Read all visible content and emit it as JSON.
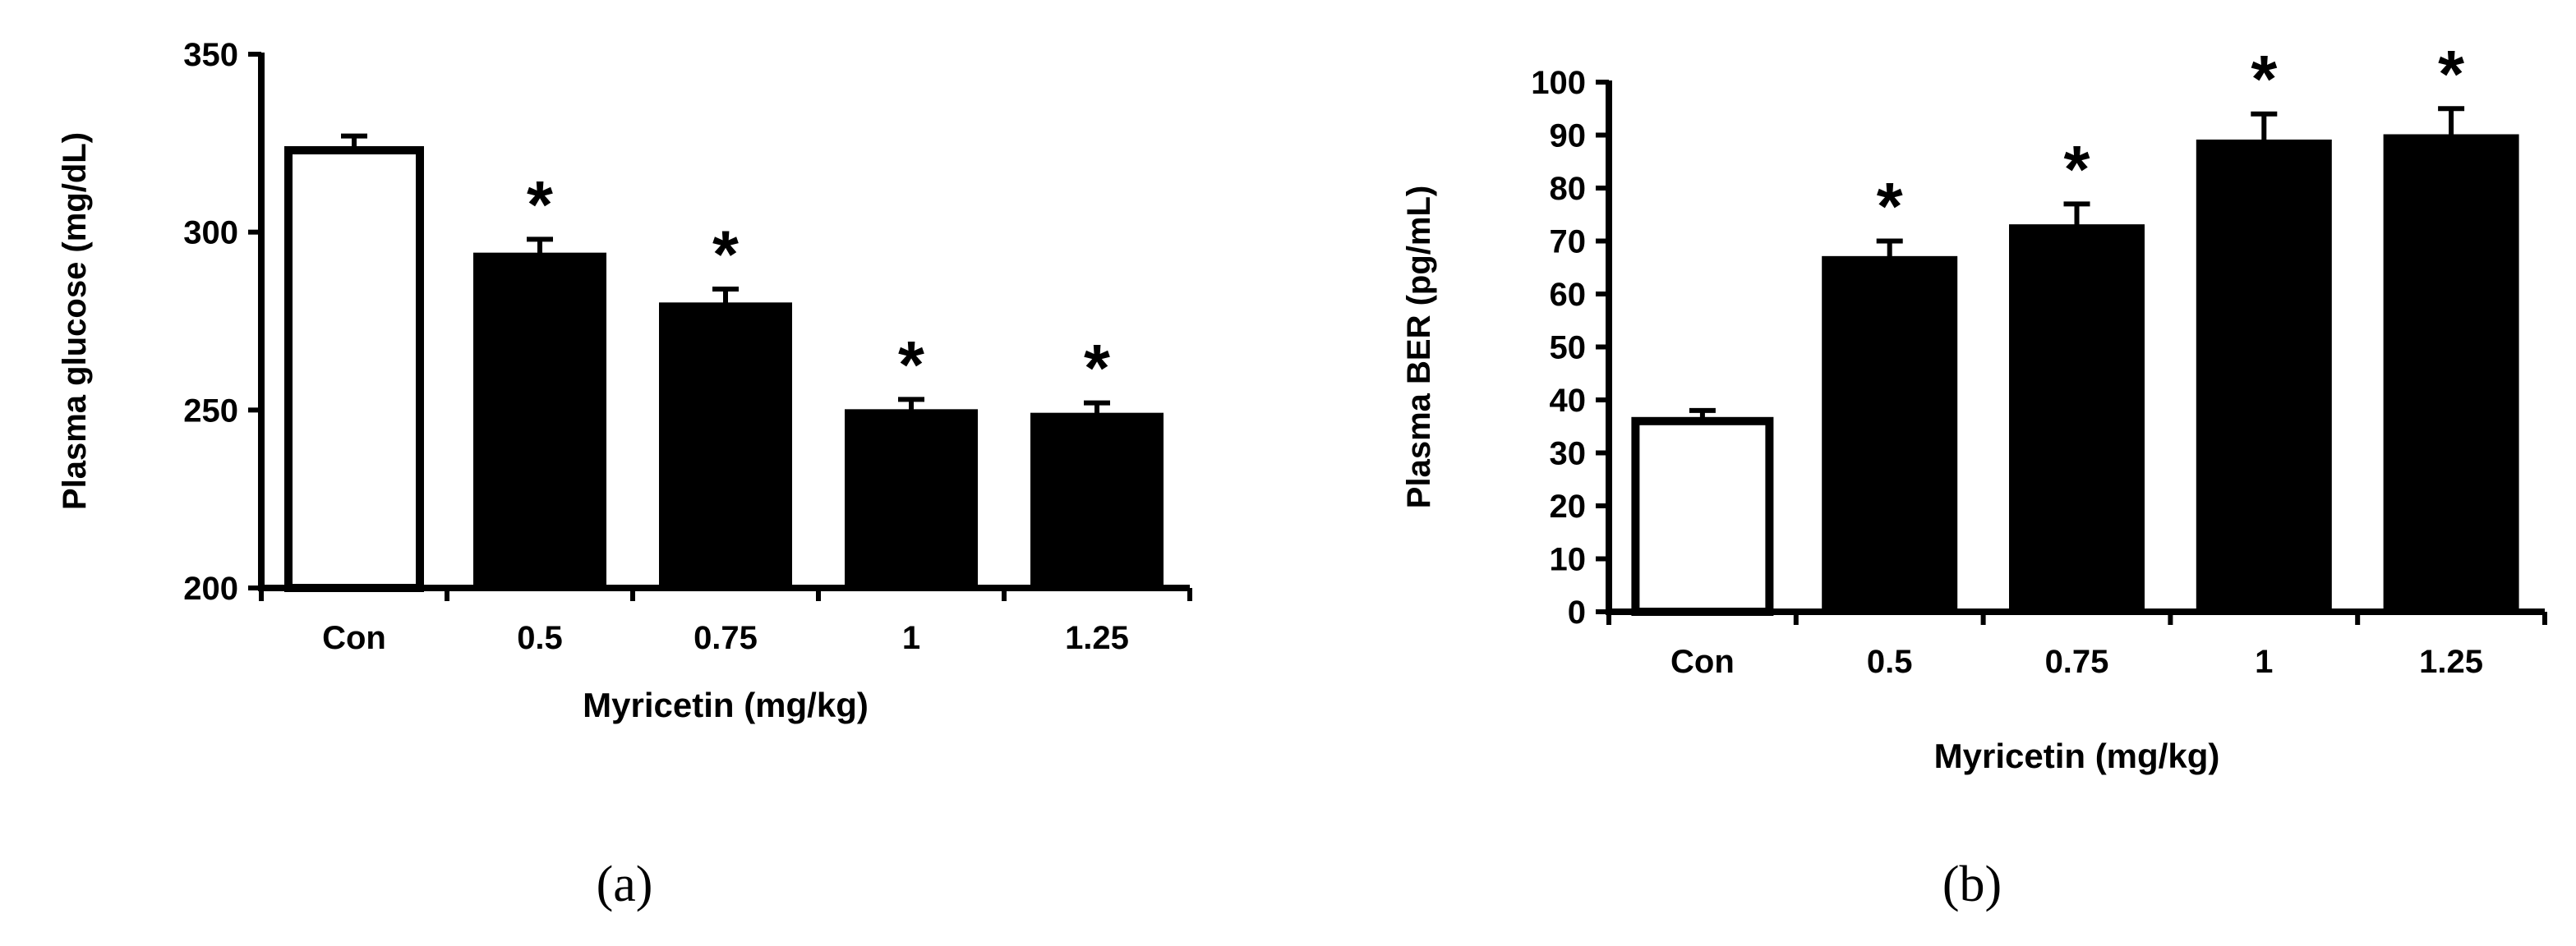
{
  "chart_data": [
    {
      "type": "bar",
      "panel_label": "(a)",
      "categories": [
        "Con",
        "0.5",
        "0.75",
        "1",
        "1.25"
      ],
      "values": [
        323,
        294,
        280,
        250,
        249
      ],
      "errors": [
        4,
        4,
        4,
        3,
        3
      ],
      "significant": [
        false,
        true,
        true,
        true,
        true
      ],
      "significance_marker": "*",
      "bar_colors": [
        "#ffffff",
        "#000000",
        "#000000",
        "#000000",
        "#000000"
      ],
      "xlabel": "Myricetin (mg/kg)",
      "ylabel": "Plasma glucose (mg/dL)",
      "ylim": [
        200,
        350
      ],
      "yticks": [
        200,
        250,
        300,
        350
      ],
      "grid": false
    },
    {
      "type": "bar",
      "panel_label": "(b)",
      "categories": [
        "Con",
        "0.5",
        "0.75",
        "1",
        "1.25"
      ],
      "values": [
        36,
        67,
        73,
        89,
        90
      ],
      "errors": [
        2,
        3,
        4,
        5,
        5
      ],
      "significant": [
        false,
        true,
        true,
        true,
        true
      ],
      "significance_marker": "*",
      "bar_colors": [
        "#ffffff",
        "#000000",
        "#000000",
        "#000000",
        "#000000"
      ],
      "xlabel": "Myricetin (mg/kg)",
      "ylabel": "Plasma BER (pg/mL)",
      "ylim": [
        0,
        100
      ],
      "yticks": [
        0,
        10,
        20,
        30,
        40,
        50,
        60,
        70,
        80,
        90,
        100
      ],
      "grid": false
    }
  ]
}
